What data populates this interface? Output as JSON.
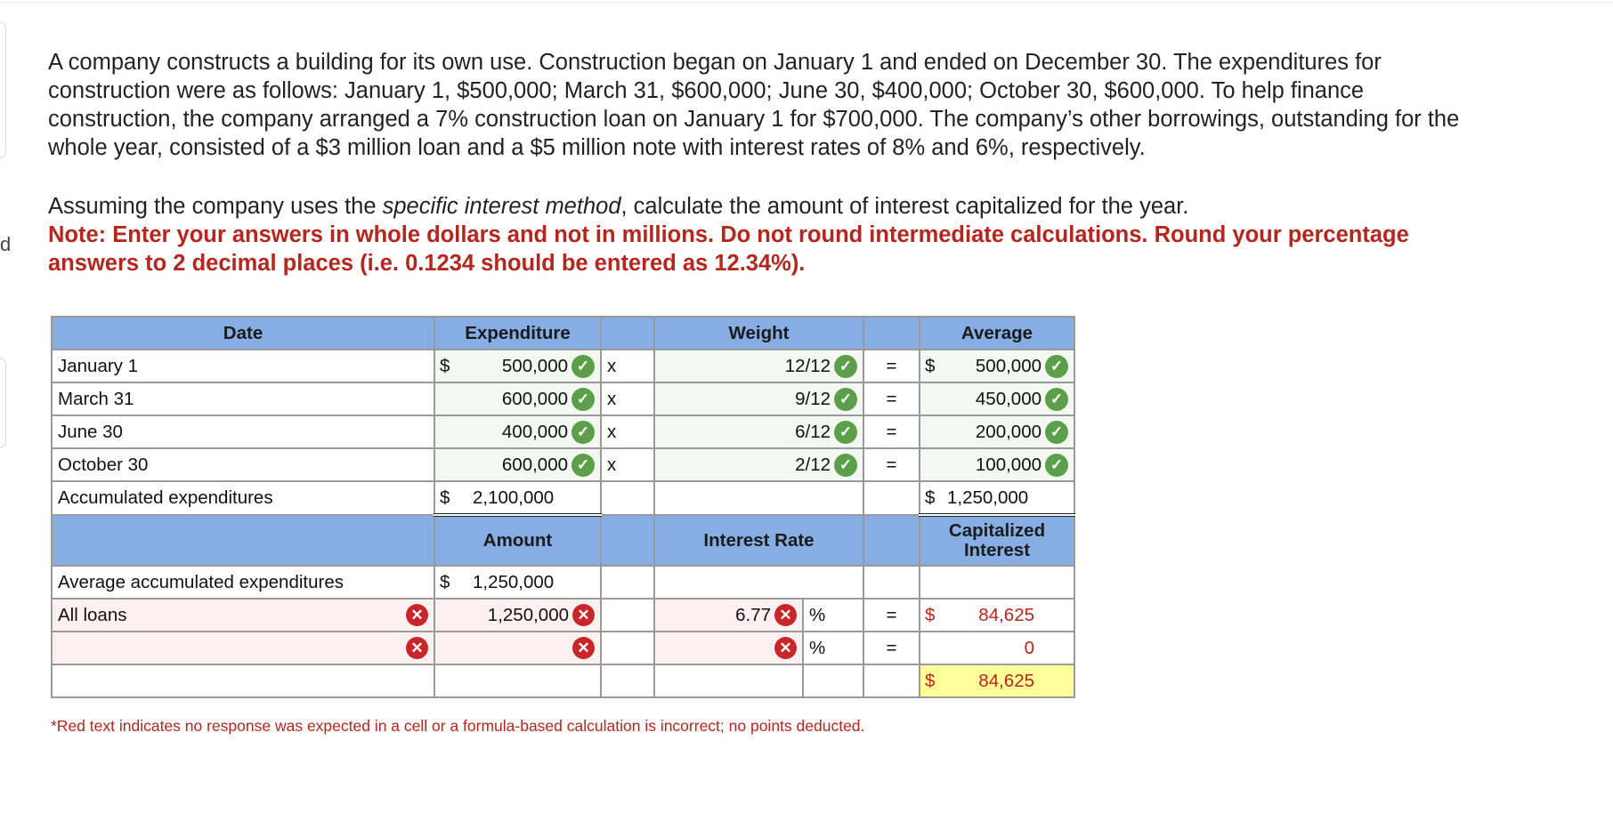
{
  "question": {
    "paragraph1": "A company constructs a building for its own use. Construction began on January 1 and ended on December 30. The expenditures for construction were as follows: January 1, $500,000; March 31, $600,000; June 30, $400,000; October 30, $600,000. To help finance construction, the company arranged a 7% construction loan on January 1 for $700,000. The company’s other borrowings, outstanding for the whole year, consisted of a $3 million loan and a $5 million note with interest rates of 8% and 6%, respectively.",
    "p2_before": "Assuming the company uses the ",
    "p2_emph": "specific interest method",
    "p2_after": ", calculate the amount of interest capitalized for the year.",
    "note": "Note: Enter your answers in whole dollars and not in millions. Do not round intermediate calculations. Round your percentage answers to 2 decimal places (i.e. 0.1234 should be entered as 12.34%)."
  },
  "stray_char": "d",
  "table": {
    "headers": {
      "date": "Date",
      "expenditure": "Expenditure",
      "weight": "Weight",
      "average": "Average"
    },
    "symbols": {
      "currency": "$",
      "times": "x",
      "equals": "=",
      "percent": "%"
    },
    "rows": [
      {
        "date": "January 1",
        "expenditure": "500,000",
        "weight": "12/12",
        "average": "500,000"
      },
      {
        "date": "March 31",
        "expenditure": "600,000",
        "weight": "9/12",
        "average": "450,000"
      },
      {
        "date": "June 30",
        "expenditure": "400,000",
        "weight": "6/12",
        "average": "200,000"
      },
      {
        "date": "October 30",
        "expenditure": "600,000",
        "weight": "2/12",
        "average": "100,000"
      }
    ],
    "accumulated": {
      "label": "Accumulated expenditures",
      "expenditure": "2,100,000",
      "average": "1,250,000"
    },
    "headers2": {
      "amount": "Amount",
      "interest_rate": "Interest Rate",
      "capitalized_line1": "Capitalized",
      "capitalized_line2": "Interest"
    },
    "avg_accum": {
      "label": "Average accumulated expenditures",
      "amount": "1,250,000"
    },
    "all_loans": {
      "label": "All loans",
      "amount": "1,250,000",
      "rate": "6.77",
      "interest": "84,625"
    },
    "blank_row": {
      "interest": "0"
    },
    "total": {
      "interest": "84,625"
    }
  },
  "footnote": "*Red text indicates no response was expected in a cell or a formula-based calculation is incorrect; no points deducted.",
  "colors": {
    "header_bg": "#86aee4",
    "correct": "#5b9f4a",
    "incorrect": "#c8262a",
    "note_red": "#b5261e",
    "total_highlight": "#ffff99"
  }
}
